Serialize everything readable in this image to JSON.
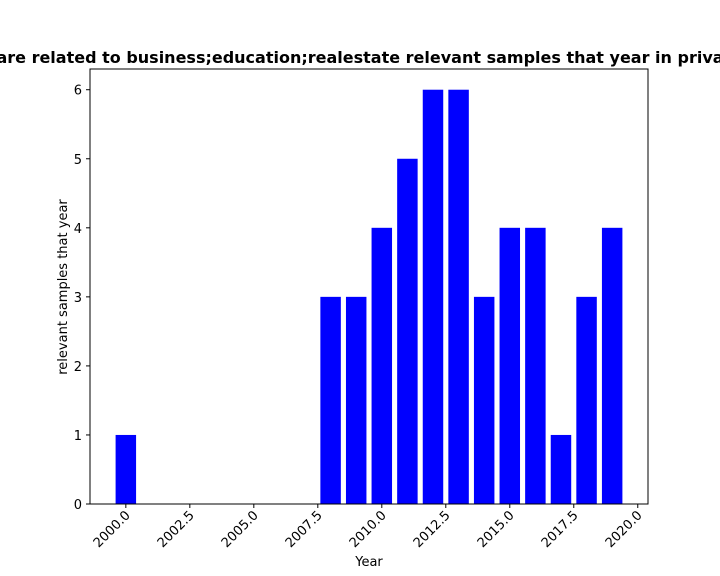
{
  "chart_data": {
    "type": "bar",
    "title": "are related to business;education;realestate relevant samples that year in priva",
    "xlabel": "Year",
    "ylabel": "relevant samples that year",
    "x": [
      2000,
      2008,
      2009,
      2010,
      2011,
      2012,
      2013,
      2014,
      2015,
      2016,
      2017,
      2018,
      2019
    ],
    "values": [
      1,
      3,
      3,
      4,
      5,
      6,
      6,
      3,
      4,
      4,
      1,
      3,
      4
    ],
    "bar_width": 0.8,
    "xlim": [
      1998.6,
      2020.4
    ],
    "ylim": [
      0,
      6.3
    ],
    "x_ticks": [
      2000.0,
      2002.5,
      2005.0,
      2007.5,
      2010.0,
      2012.5,
      2015.0,
      2017.5,
      2020.0
    ],
    "x_tick_labels": [
      "2000.0",
      "2002.5",
      "2005.0",
      "2007.5",
      "2010.0",
      "2012.5",
      "2015.0",
      "2017.5",
      "2020.0"
    ],
    "y_ticks": [
      0,
      1,
      2,
      3,
      4,
      5,
      6
    ],
    "y_tick_labels": [
      "0",
      "1",
      "2",
      "3",
      "4",
      "5",
      "6"
    ],
    "bar_color": "#0000ff",
    "grid": false,
    "x_tick_rotation": 45
  }
}
